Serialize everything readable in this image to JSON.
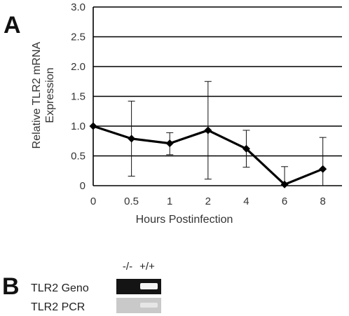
{
  "panel_a": {
    "letter": "A"
  },
  "panel_b": {
    "letter": "B",
    "lanes": [
      "-/-",
      "+/+"
    ],
    "rows": [
      {
        "label": "TLR2 Geno",
        "gel": "dark",
        "band_lane": 1
      },
      {
        "label": "TLR2 PCR",
        "gel": "light",
        "band_lane": 1
      }
    ]
  },
  "chart_data": {
    "type": "line",
    "categories": [
      "0",
      "0.5",
      "1",
      "2",
      "4",
      "6",
      "8"
    ],
    "series": [
      {
        "values": [
          1.0,
          0.79,
          0.71,
          0.93,
          0.62,
          0.02,
          0.28
        ],
        "error_low": [
          1.0,
          0.16,
          0.52,
          0.11,
          0.31,
          0.0,
          0.0
        ],
        "error_high": [
          1.0,
          1.42,
          0.89,
          1.75,
          0.93,
          0.32,
          0.81
        ],
        "color": "#000000",
        "marker": "diamond"
      }
    ],
    "xlabel": "Hours Postinfection",
    "ylabel_lines": [
      "Relative TLR2 mRNA",
      "Expression"
    ],
    "yticks": [
      "0",
      "0.5",
      "1.0",
      "1.5",
      "2.0",
      "2.5",
      "3.0"
    ],
    "ylim": [
      0,
      3.0
    ],
    "grid": "horizontal"
  }
}
